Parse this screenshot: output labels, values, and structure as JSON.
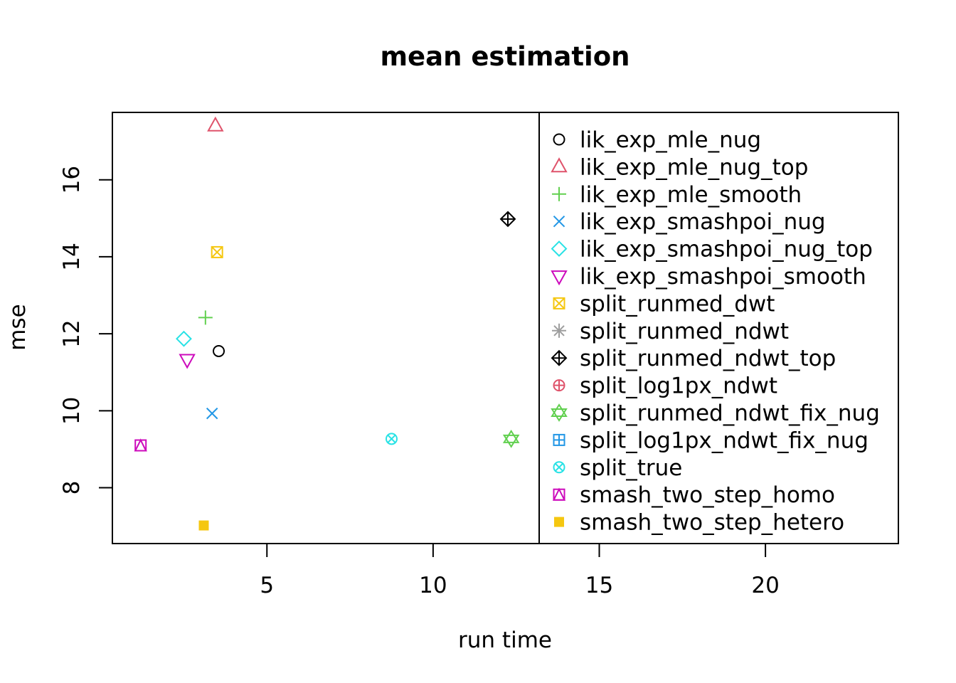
{
  "chart_data": {
    "type": "scatter",
    "title": "mean estimation",
    "xlabel": "run time",
    "ylabel": "mse",
    "xlim": [
      0.35,
      24.0
    ],
    "ylim": [
      6.55,
      17.75
    ],
    "xticks": [
      5,
      10,
      15,
      20
    ],
    "yticks": [
      8,
      10,
      12,
      14,
      16
    ],
    "grid": false,
    "legend_position": "right",
    "series": [
      {
        "name": "lik_exp_mle_nug",
        "color": "#000000",
        "marker": "circle",
        "x": [
          3.55
        ],
        "y": [
          11.55
        ]
      },
      {
        "name": "lik_exp_mle_nug_top",
        "color": "#DF536B",
        "marker": "triangle-up",
        "x": [
          3.45
        ],
        "y": [
          17.4
        ]
      },
      {
        "name": "lik_exp_mle_smooth",
        "color": "#61D04F",
        "marker": "plus",
        "x": [
          3.15
        ],
        "y": [
          12.42
        ]
      },
      {
        "name": "lik_exp_smashpoi_nug",
        "color": "#2297E6",
        "marker": "cross",
        "x": [
          3.35
        ],
        "y": [
          9.93
        ]
      },
      {
        "name": "lik_exp_smashpoi_nug_top",
        "color": "#28E2E5",
        "marker": "diamond",
        "x": [
          2.5
        ],
        "y": [
          11.87
        ]
      },
      {
        "name": "lik_exp_smashpoi_smooth",
        "color": "#CD0BBC",
        "marker": "triangle-down",
        "x": [
          2.6
        ],
        "y": [
          11.33
        ]
      },
      {
        "name": "split_runmed_dwt",
        "color": "#F5C710",
        "marker": "square-x",
        "x": [
          3.5
        ],
        "y": [
          14.12
        ]
      },
      {
        "name": "split_runmed_ndwt",
        "color": "#9E9E9E",
        "marker": "asterisk",
        "x": [],
        "y": []
      },
      {
        "name": "split_runmed_ndwt_top",
        "color": "#000000",
        "marker": "diamond-plus",
        "x": [
          12.25
        ],
        "y": [
          14.98
        ]
      },
      {
        "name": "split_log1px_ndwt",
        "color": "#DF536B",
        "marker": "circle-plus",
        "x": [],
        "y": []
      },
      {
        "name": "split_runmed_ndwt_fix_nug",
        "color": "#61D04F",
        "marker": "star-of-david",
        "x": [
          12.35
        ],
        "y": [
          9.27
        ]
      },
      {
        "name": "split_log1px_ndwt_fix_nug",
        "color": "#2297E6",
        "marker": "square-plus",
        "x": [],
        "y": []
      },
      {
        "name": "split_true",
        "color": "#28E2E5",
        "marker": "circle-x",
        "x": [
          8.75
        ],
        "y": [
          9.27
        ]
      },
      {
        "name": "smash_two_step_homo",
        "color": "#CD0BBC",
        "marker": "square-triangle",
        "x": [
          1.2
        ],
        "y": [
          9.1
        ]
      },
      {
        "name": "smash_two_step_hetero",
        "color": "#F5C710",
        "marker": "filled-square",
        "x": [
          3.1
        ],
        "y": [
          7.02
        ]
      }
    ]
  }
}
